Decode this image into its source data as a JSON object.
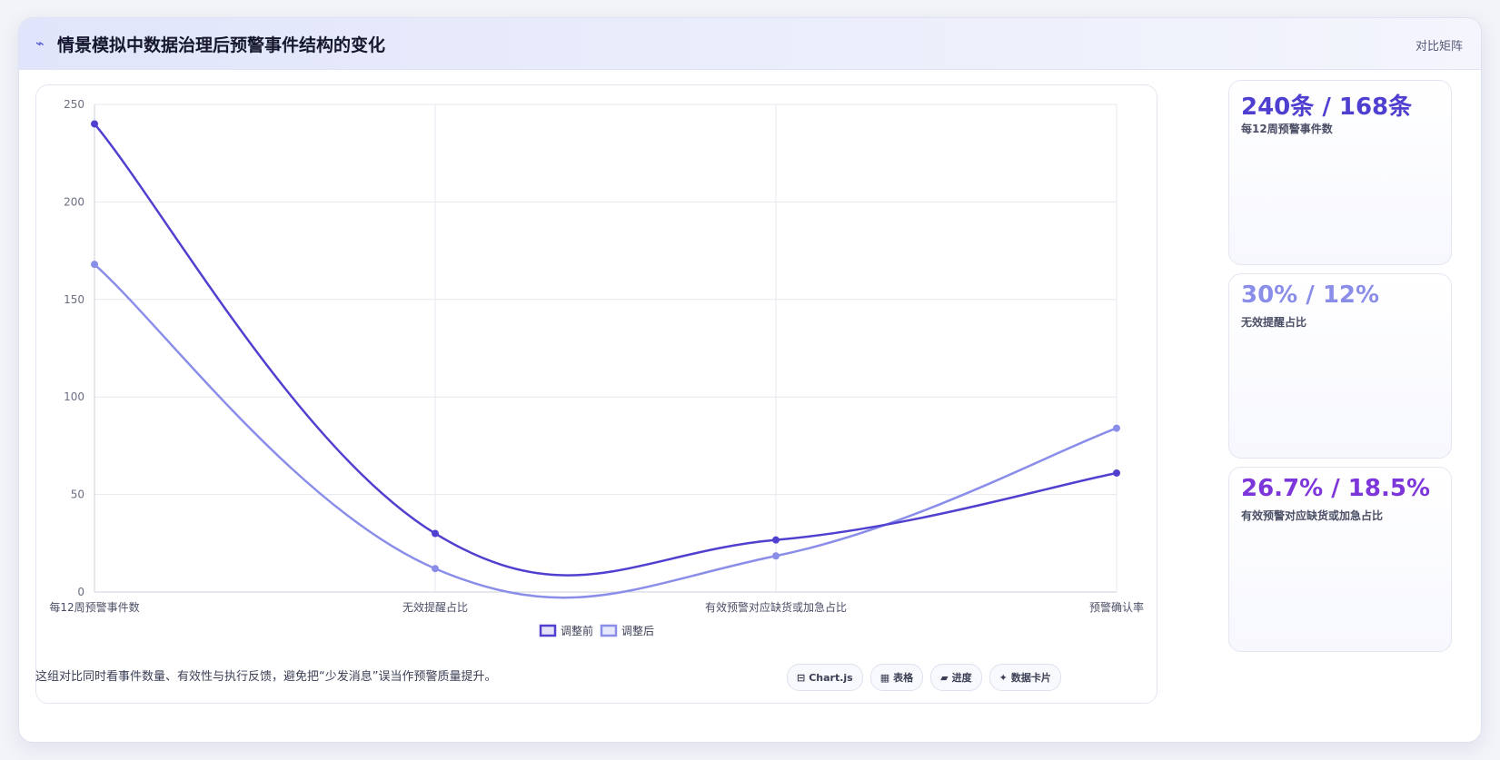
{
  "header": {
    "icon": "pulse-icon",
    "title": "情景模拟中数据治理后预警事件结构的变化",
    "tag": "对比矩阵"
  },
  "chart_data": {
    "type": "line",
    "categories": [
      "每12周预警事件数",
      "无效提醒占比",
      "有效预警对应缺货或加急占比",
      "预警确认率"
    ],
    "series": [
      {
        "name": "调整前",
        "values": [
          240,
          30,
          26.7,
          61
        ],
        "color": "#5140cf"
      },
      {
        "name": "调整后",
        "values": [
          168,
          12,
          18.5,
          84
        ],
        "color": "#8a8ee8"
      }
    ],
    "ylim": [
      0,
      250
    ],
    "yticks": [
      0,
      50,
      100,
      150,
      200,
      250
    ],
    "grid": true,
    "legend": "bottom"
  },
  "stats": [
    {
      "value": "240条 / 168条",
      "label": "每12周预警事件数",
      "color": "#4f3fd0"
    },
    {
      "value": "30% / 12%",
      "label": "无效提醒占比",
      "color": "#8a8ee8"
    },
    {
      "value": "26.7% / 18.5%",
      "label": "有效预警对应缺货或加急占比",
      "color": "#7d36d9"
    }
  ],
  "footnote": "这组对比同时看事件数量、有效性与执行反馈，避免把“少发消息”误当作预警质量提升。",
  "tags": [
    {
      "icon": "chart-icon",
      "glyph": "⊟",
      "label": "Chart.js"
    },
    {
      "icon": "table-icon",
      "glyph": "▦",
      "label": "表格"
    },
    {
      "icon": "progress-icon",
      "glyph": "▰",
      "label": "进度"
    },
    {
      "icon": "card-icon",
      "glyph": "✦",
      "label": "数据卡片"
    }
  ]
}
